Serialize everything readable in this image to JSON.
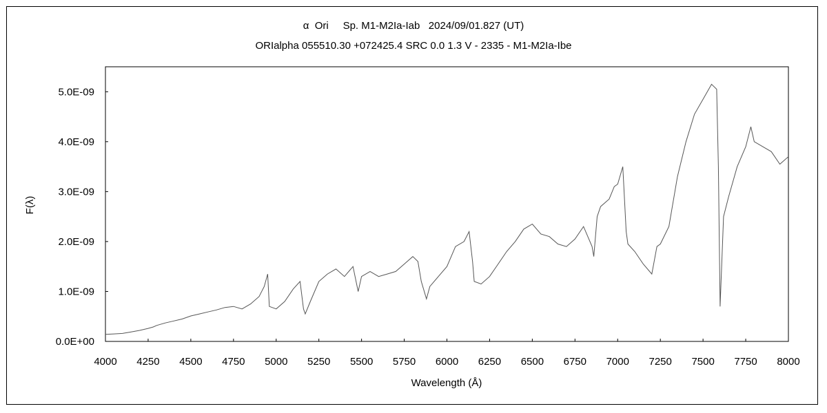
{
  "chart_data": {
    "type": "line",
    "title": "α  Ori     Sp. M1-M2Ia-Iab   2024/09/01.827 (UT)",
    "subtitle": "ORIalpha 055510.30 +072425.4 SRC 0.0 1.3 V - 2335 - M1-M2Ia-Ibe",
    "xlabel": "Wavelength (Å)",
    "ylabel": "F(λ)",
    "xlim": [
      4000,
      8000
    ],
    "ylim": [
      0,
      5.5e-09
    ],
    "x_ticks": [
      "4000",
      "4250",
      "4500",
      "4750",
      "5000",
      "5250",
      "5500",
      "5750",
      "6000",
      "6250",
      "6500",
      "6750",
      "7000",
      "7250",
      "7500",
      "7750",
      "8000"
    ],
    "y_ticks": [
      "0.0E+00",
      "1.0E-09",
      "2.0E-09",
      "3.0E-09",
      "4.0E-09",
      "5.0E-09"
    ],
    "grid": false,
    "line_color": "#555555",
    "series": [
      {
        "x": [
          4000,
          4050,
          4100,
          4150,
          4200,
          4250,
          4280,
          4300,
          4350,
          4400,
          4450,
          4500,
          4550,
          4600,
          4650,
          4700,
          4750,
          4800,
          4850,
          4900,
          4930,
          4950,
          4960,
          5000,
          5050,
          5100,
          5140,
          5160,
          5170,
          5200,
          5250,
          5300,
          5350,
          5400,
          5450,
          5480,
          5500,
          5550,
          5600,
          5650,
          5700,
          5750,
          5800,
          5830,
          5850,
          5880,
          5900,
          5950,
          6000,
          6050,
          6100,
          6130,
          6150,
          6160,
          6200,
          6250,
          6300,
          6350,
          6400,
          6450,
          6500,
          6550,
          6600,
          6650,
          6700,
          6750,
          6800,
          6850,
          6860,
          6880,
          6900,
          6950,
          6980,
          7000,
          7030,
          7050,
          7060,
          7100,
          7150,
          7200,
          7230,
          7250,
          7300,
          7350,
          7400,
          7450,
          7500,
          7550,
          7580,
          7590,
          7600,
          7620,
          7650,
          7700,
          7750,
          7780,
          7800,
          7850,
          7900,
          7950,
          8000
        ],
        "y": [
          1.4e-10,
          1.5e-10,
          1.6e-10,
          1.9e-10,
          2.2e-10,
          2.6e-10,
          2.9e-10,
          3.2e-10,
          3.7e-10,
          4.1e-10,
          4.5e-10,
          5.1e-10,
          5.5e-10,
          5.9e-10,
          6.3e-10,
          6.8e-10,
          7e-10,
          6.5e-10,
          7.5e-10,
          9e-10,
          1.1e-09,
          1.35e-09,
          7e-10,
          6.5e-10,
          8e-10,
          1.05e-09,
          1.2e-09,
          6.5e-10,
          5.5e-10,
          8e-10,
          1.2e-09,
          1.35e-09,
          1.45e-09,
          1.3e-09,
          1.5e-09,
          1e-09,
          1.3e-09,
          1.4e-09,
          1.3e-09,
          1.35e-09,
          1.4e-09,
          1.55e-09,
          1.7e-09,
          1.6e-09,
          1.2e-09,
          8.5e-10,
          1.1e-09,
          1.3e-09,
          1.5e-09,
          1.9e-09,
          2e-09,
          2.2e-09,
          1.6e-09,
          1.2e-09,
          1.15e-09,
          1.3e-09,
          1.55e-09,
          1.8e-09,
          2e-09,
          2.25e-09,
          2.35e-09,
          2.15e-09,
          2.1e-09,
          1.95e-09,
          1.9e-09,
          2.05e-09,
          2.3e-09,
          1.9e-09,
          1.7e-09,
          2.5e-09,
          2.7e-09,
          2.85e-09,
          3.1e-09,
          3.15e-09,
          3.5e-09,
          2.2e-09,
          1.95e-09,
          1.8e-09,
          1.55e-09,
          1.35e-09,
          1.9e-09,
          1.95e-09,
          2.3e-09,
          3.3e-09,
          4e-09,
          4.55e-09,
          4.85e-09,
          5.15e-09,
          5.05e-09,
          3.5e-09,
          7e-10,
          2.5e-09,
          2.9e-09,
          3.5e-09,
          3.9e-09,
          4.3e-09,
          4e-09,
          3.9e-09,
          3.8e-09,
          3.55e-09,
          3.7e-09
        ]
      }
    ]
  }
}
